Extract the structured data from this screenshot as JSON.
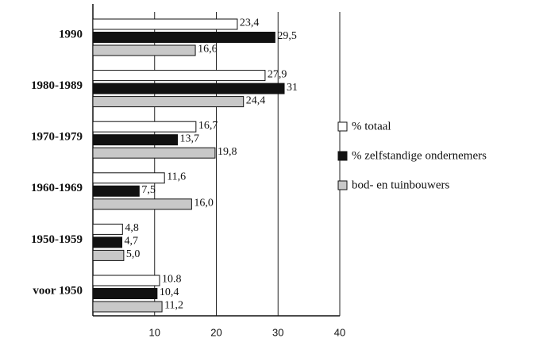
{
  "chart_data": {
    "type": "bar",
    "orientation": "horizontal",
    "categories": [
      "1990",
      "1980-1989",
      "1970-1979",
      "1960-1969",
      "1950-1959",
      "voor 1950"
    ],
    "series": [
      {
        "name": "% totaal",
        "color": "#ffffff",
        "values": [
          23.4,
          27.9,
          16.7,
          11.6,
          4.8,
          10.8
        ],
        "value_labels": [
          "23,4",
          "27,9",
          "16,7",
          "11,6",
          "4,8",
          "10.8"
        ]
      },
      {
        "name": "% zelfstandige ondernemers",
        "color": "#111111",
        "values": [
          29.5,
          31,
          13.7,
          7.5,
          4.7,
          10.4
        ],
        "value_labels": [
          "29,5",
          "31",
          "13,7",
          "7,5",
          "4,7",
          "10,4"
        ]
      },
      {
        "name": "bod- en tuinbouwers",
        "color": "#c8c8c8",
        "values": [
          16.6,
          24.4,
          19.8,
          16.0,
          5.0,
          11.2
        ],
        "value_labels": [
          "16,6",
          "24,4",
          "19,8",
          "16,0",
          "5,0",
          "11,2"
        ]
      }
    ],
    "xlim": [
      0,
      40
    ],
    "xticks": [
      10,
      20,
      30,
      40
    ],
    "grid": true,
    "legend": "right"
  }
}
